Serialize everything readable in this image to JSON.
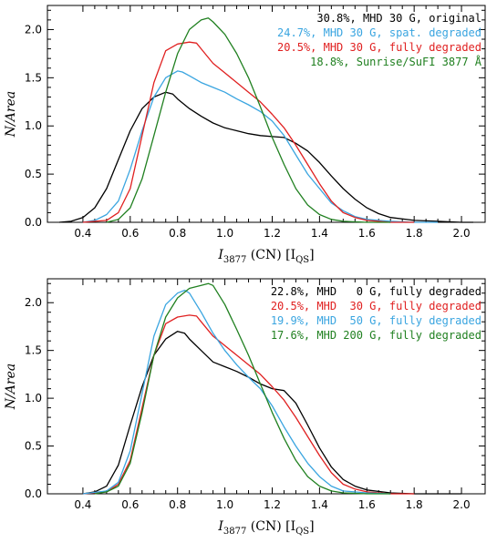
{
  "chart_data": [
    {
      "type": "line",
      "title": "",
      "xlabel": "I3877 (CN) [IQS]",
      "xlabel_parts": {
        "symbol": "I",
        "sub": "3877",
        "mid": " (CN) [I",
        "unit_sub": "QS",
        "end": "]"
      },
      "ylabel": "N/Area",
      "xlim": [
        0.25,
        2.1
      ],
      "ylim": [
        0,
        2.25
      ],
      "xticks": [
        "0.4",
        "0.6",
        "0.8",
        "1.0",
        "1.2",
        "1.4",
        "1.6",
        "1.8",
        "2.0"
      ],
      "yticks": [
        "0.0",
        "0.5",
        "1.0",
        "1.5",
        "2.0"
      ],
      "legend_position": "top-right",
      "series": [
        {
          "name": "30.8%, MHD 30 G, original",
          "color": "#000000",
          "x": [
            0.3,
            0.35,
            0.4,
            0.45,
            0.5,
            0.55,
            0.6,
            0.65,
            0.7,
            0.75,
            0.78,
            0.8,
            0.85,
            0.9,
            0.95,
            1.0,
            1.05,
            1.1,
            1.15,
            1.2,
            1.25,
            1.3,
            1.35,
            1.4,
            1.45,
            1.5,
            1.55,
            1.6,
            1.65,
            1.7,
            1.8,
            1.9,
            2.0,
            2.05
          ],
          "y": [
            0.0,
            0.01,
            0.05,
            0.15,
            0.35,
            0.65,
            0.95,
            1.18,
            1.3,
            1.35,
            1.33,
            1.28,
            1.18,
            1.1,
            1.03,
            0.98,
            0.95,
            0.92,
            0.9,
            0.89,
            0.88,
            0.82,
            0.74,
            0.62,
            0.48,
            0.35,
            0.24,
            0.15,
            0.09,
            0.05,
            0.02,
            0.01,
            0.0,
            0.0
          ]
        },
        {
          "name": "24.7%, MHD 30 G, spat. degraded",
          "color": "#3aa5e0",
          "x": [
            0.4,
            0.45,
            0.5,
            0.55,
            0.6,
            0.65,
            0.7,
            0.75,
            0.8,
            0.82,
            0.85,
            0.9,
            0.95,
            1.0,
            1.05,
            1.1,
            1.15,
            1.2,
            1.25,
            1.3,
            1.35,
            1.4,
            1.45,
            1.5,
            1.55,
            1.6,
            1.65,
            1.7,
            1.8,
            1.9
          ],
          "y": [
            0.0,
            0.02,
            0.08,
            0.22,
            0.55,
            0.95,
            1.3,
            1.5,
            1.57,
            1.56,
            1.52,
            1.45,
            1.4,
            1.35,
            1.28,
            1.22,
            1.15,
            1.05,
            0.9,
            0.7,
            0.5,
            0.35,
            0.2,
            0.12,
            0.06,
            0.03,
            0.02,
            0.01,
            0.0,
            0.0
          ]
        },
        {
          "name": "20.5%, MHD 30 G, fully degraded",
          "color": "#e02020",
          "x": [
            0.4,
            0.5,
            0.55,
            0.6,
            0.65,
            0.7,
            0.75,
            0.8,
            0.85,
            0.88,
            0.9,
            0.95,
            1.0,
            1.05,
            1.1,
            1.15,
            1.2,
            1.25,
            1.3,
            1.35,
            1.4,
            1.45,
            1.5,
            1.55,
            1.6,
            1.7,
            1.8
          ],
          "y": [
            0.0,
            0.02,
            0.1,
            0.35,
            0.9,
            1.45,
            1.78,
            1.85,
            1.87,
            1.86,
            1.8,
            1.65,
            1.55,
            1.45,
            1.35,
            1.25,
            1.12,
            0.98,
            0.8,
            0.6,
            0.4,
            0.22,
            0.1,
            0.05,
            0.02,
            0.0,
            0.0
          ]
        },
        {
          "name": "18.8%, Sunrise/SuFI 3877 Å",
          "color": "#208020",
          "x": [
            0.5,
            0.55,
            0.6,
            0.65,
            0.7,
            0.75,
            0.8,
            0.85,
            0.9,
            0.93,
            0.95,
            1.0,
            1.05,
            1.1,
            1.15,
            1.2,
            1.25,
            1.3,
            1.35,
            1.4,
            1.45,
            1.5,
            1.6,
            1.7
          ],
          "y": [
            0.0,
            0.03,
            0.15,
            0.45,
            0.9,
            1.35,
            1.75,
            2.0,
            2.1,
            2.12,
            2.08,
            1.95,
            1.75,
            1.5,
            1.2,
            0.88,
            0.6,
            0.35,
            0.18,
            0.08,
            0.03,
            0.01,
            0.0,
            0.0
          ]
        }
      ]
    },
    {
      "type": "line",
      "title": "",
      "xlabel": "I3877 (CN) [IQS]",
      "xlabel_parts": {
        "symbol": "I",
        "sub": "3877",
        "mid": " (CN) [I",
        "unit_sub": "QS",
        "end": "]"
      },
      "ylabel": "N/Area",
      "xlim": [
        0.25,
        2.1
      ],
      "ylim": [
        0,
        2.25
      ],
      "xticks": [
        "0.4",
        "0.6",
        "0.8",
        "1.0",
        "1.2",
        "1.4",
        "1.6",
        "1.8",
        "2.0"
      ],
      "yticks": [
        "0.0",
        "0.5",
        "1.0",
        "1.5",
        "2.0"
      ],
      "legend_position": "top-right",
      "series": [
        {
          "name": "22.8%, MHD   0 G, fully degraded",
          "color": "#000000",
          "x": [
            0.4,
            0.45,
            0.5,
            0.55,
            0.6,
            0.65,
            0.7,
            0.75,
            0.8,
            0.83,
            0.85,
            0.9,
            0.95,
            1.0,
            1.05,
            1.1,
            1.15,
            1.2,
            1.25,
            1.3,
            1.35,
            1.4,
            1.45,
            1.5,
            1.55,
            1.6,
            1.7,
            1.8,
            1.9,
            2.0
          ],
          "y": [
            0.0,
            0.02,
            0.08,
            0.3,
            0.72,
            1.12,
            1.45,
            1.62,
            1.7,
            1.68,
            1.62,
            1.5,
            1.38,
            1.33,
            1.28,
            1.22,
            1.15,
            1.1,
            1.08,
            0.95,
            0.72,
            0.48,
            0.28,
            0.15,
            0.08,
            0.04,
            0.01,
            0.0,
            0.0,
            0.0
          ]
        },
        {
          "name": "20.5%, MHD  30 G, fully degraded",
          "color": "#e02020",
          "x": [
            0.4,
            0.5,
            0.55,
            0.6,
            0.65,
            0.7,
            0.75,
            0.8,
            0.85,
            0.88,
            0.9,
            0.95,
            1.0,
            1.05,
            1.1,
            1.15,
            1.2,
            1.25,
            1.3,
            1.35,
            1.4,
            1.45,
            1.5,
            1.55,
            1.6,
            1.7,
            1.8
          ],
          "y": [
            0.0,
            0.02,
            0.1,
            0.35,
            0.9,
            1.45,
            1.78,
            1.85,
            1.87,
            1.86,
            1.8,
            1.65,
            1.55,
            1.45,
            1.35,
            1.25,
            1.12,
            0.98,
            0.8,
            0.6,
            0.4,
            0.22,
            0.1,
            0.05,
            0.02,
            0.0,
            0.0
          ]
        },
        {
          "name": "19.9%, MHD  50 G, fully degraded",
          "color": "#3aa5e0",
          "x": [
            0.4,
            0.5,
            0.55,
            0.6,
            0.65,
            0.7,
            0.75,
            0.8,
            0.83,
            0.85,
            0.9,
            0.95,
            1.0,
            1.05,
            1.1,
            1.15,
            1.2,
            1.25,
            1.3,
            1.35,
            1.4,
            1.45,
            1.5,
            1.6,
            1.7
          ],
          "y": [
            0.0,
            0.03,
            0.12,
            0.45,
            1.05,
            1.65,
            1.98,
            2.1,
            2.13,
            2.1,
            1.9,
            1.68,
            1.5,
            1.35,
            1.22,
            1.1,
            0.92,
            0.7,
            0.5,
            0.32,
            0.18,
            0.08,
            0.03,
            0.01,
            0.0
          ]
        },
        {
          "name": "17.6%, MHD 200 G, fully degraded",
          "color": "#208020",
          "x": [
            0.45,
            0.5,
            0.55,
            0.6,
            0.65,
            0.7,
            0.75,
            0.8,
            0.85,
            0.9,
            0.93,
            0.95,
            1.0,
            1.05,
            1.1,
            1.15,
            1.2,
            1.25,
            1.3,
            1.35,
            1.4,
            1.45,
            1.5,
            1.6,
            1.7
          ],
          "y": [
            0.0,
            0.02,
            0.08,
            0.32,
            0.85,
            1.45,
            1.85,
            2.05,
            2.15,
            2.18,
            2.2,
            2.18,
            1.98,
            1.72,
            1.45,
            1.15,
            0.85,
            0.58,
            0.35,
            0.18,
            0.08,
            0.03,
            0.01,
            0.0,
            0.0
          ]
        }
      ]
    }
  ]
}
